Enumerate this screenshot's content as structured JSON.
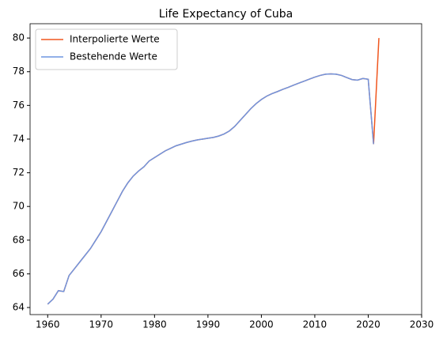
{
  "chart_data": {
    "type": "line",
    "title": "Life Expectancy of Cuba",
    "x": [
      1960,
      1961,
      1962,
      1963,
      1964,
      1965,
      1966,
      1967,
      1968,
      1969,
      1970,
      1971,
      1972,
      1973,
      1974,
      1975,
      1976,
      1977,
      1978,
      1979,
      1980,
      1981,
      1982,
      1983,
      1984,
      1985,
      1986,
      1987,
      1988,
      1989,
      1990,
      1991,
      1992,
      1993,
      1994,
      1995,
      1996,
      1997,
      1998,
      1999,
      2000,
      2001,
      2002,
      2003,
      2004,
      2005,
      2006,
      2007,
      2008,
      2009,
      2010,
      2011,
      2012,
      2013,
      2014,
      2015,
      2016,
      2017,
      2018,
      2019,
      2020,
      2021,
      2022
    ],
    "series": [
      {
        "name": "Interpolierte Werte",
        "color": "#f0561e",
        "values": [
          64.2,
          64.5,
          65.0,
          64.95,
          65.9,
          66.3,
          66.7,
          67.1,
          67.5,
          68.0,
          68.5,
          69.1,
          69.7,
          70.3,
          70.9,
          71.4,
          71.8,
          72.1,
          72.35,
          72.7,
          72.9,
          73.1,
          73.3,
          73.45,
          73.6,
          73.7,
          73.8,
          73.88,
          73.95,
          74.0,
          74.05,
          74.1,
          74.18,
          74.3,
          74.48,
          74.75,
          75.1,
          75.45,
          75.8,
          76.1,
          76.35,
          76.55,
          76.7,
          76.82,
          76.95,
          77.07,
          77.2,
          77.32,
          77.44,
          77.56,
          77.68,
          77.78,
          77.85,
          77.87,
          77.85,
          77.78,
          77.65,
          77.53,
          77.5,
          77.6,
          77.55,
          73.7,
          80.0
        ]
      },
      {
        "name": "Bestehende Werte",
        "color": "#6f95e0",
        "values": [
          64.2,
          64.5,
          65.0,
          64.95,
          65.9,
          66.3,
          66.7,
          67.1,
          67.5,
          68.0,
          68.5,
          69.1,
          69.7,
          70.3,
          70.9,
          71.4,
          71.8,
          72.1,
          72.35,
          72.7,
          72.9,
          73.1,
          73.3,
          73.45,
          73.6,
          73.7,
          73.8,
          73.88,
          73.95,
          74.0,
          74.05,
          74.1,
          74.18,
          74.3,
          74.48,
          74.75,
          75.1,
          75.45,
          75.8,
          76.1,
          76.35,
          76.55,
          76.7,
          76.82,
          76.95,
          77.07,
          77.2,
          77.32,
          77.44,
          77.56,
          77.68,
          77.78,
          77.85,
          77.87,
          77.85,
          77.78,
          77.65,
          77.53,
          77.5,
          77.6,
          77.55,
          73.7,
          null
        ]
      }
    ],
    "xlim": [
      1956.7,
      2030
    ],
    "xticks": [
      1960,
      1970,
      1980,
      1990,
      2000,
      2010,
      2020,
      2030
    ],
    "ylim": [
      63.58,
      80.85
    ],
    "yticks": [
      64,
      66,
      68,
      70,
      72,
      74,
      76,
      78,
      80
    ],
    "grid": false,
    "legend": "upper left"
  }
}
